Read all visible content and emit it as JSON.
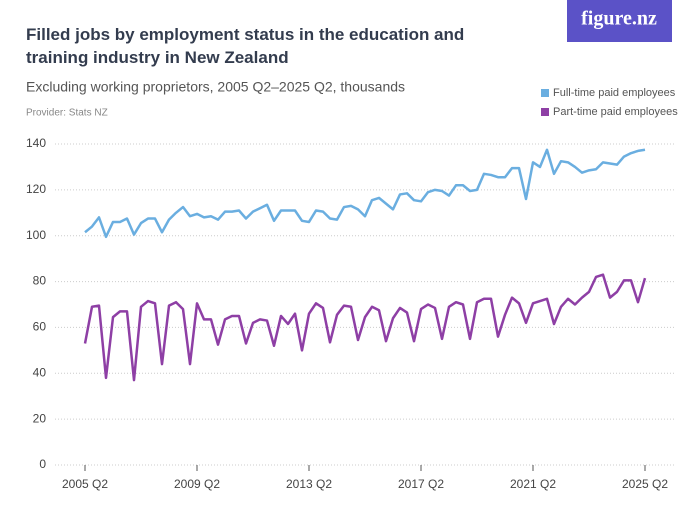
{
  "logo": "figure.nz",
  "chart_data": {
    "type": "line",
    "title": "Filled jobs by employment status in the education and training industry in New Zealand",
    "subtitle": "Excluding working proprietors, 2005 Q2–2025 Q2, thousands",
    "provider": "Provider: Stats NZ",
    "categories": [
      "2005 Q2",
      null,
      null,
      null,
      null,
      null,
      null,
      null,
      null,
      null,
      null,
      null,
      null,
      null,
      null,
      null,
      "2009 Q2",
      null,
      null,
      null,
      null,
      null,
      null,
      null,
      null,
      null,
      null,
      null,
      null,
      null,
      null,
      null,
      "2013 Q2",
      null,
      null,
      null,
      null,
      null,
      null,
      null,
      null,
      null,
      null,
      null,
      null,
      null,
      null,
      null,
      "2017 Q2",
      null,
      null,
      null,
      null,
      null,
      null,
      null,
      null,
      null,
      null,
      null,
      null,
      null,
      null,
      null,
      "2021 Q2",
      null,
      null,
      null,
      null,
      null,
      null,
      null,
      null,
      null,
      null,
      null,
      null,
      null,
      null,
      null,
      "2025 Q2"
    ],
    "series": [
      {
        "name": "Full-time paid employees",
        "color": "#6aaee0",
        "values": [
          101.5,
          104,
          108,
          99.5,
          106,
          106,
          107.5,
          100.5,
          105.5,
          107.5,
          107.5,
          101.5,
          107,
          110,
          112.5,
          108.5,
          109.5,
          108,
          108.5,
          107,
          110.5,
          110.5,
          111,
          107.5,
          110.5,
          112,
          113.5,
          106.5,
          111,
          111,
          111,
          106.5,
          106,
          111,
          110.5,
          107.5,
          107,
          112.5,
          113,
          111.5,
          108.5,
          115.5,
          116.5,
          114,
          111.5,
          118,
          118.5,
          115.5,
          115,
          119,
          120,
          119.5,
          117.5,
          122,
          122,
          119.5,
          120,
          127,
          126.5,
          125.5,
          125.5,
          129.5,
          129.5,
          116,
          132,
          130,
          137.5,
          127,
          132.5,
          132,
          130,
          127.5,
          128.5,
          129,
          132,
          131.5,
          131,
          134.5,
          136,
          137,
          137.5
        ]
      },
      {
        "name": "Part-time paid employees",
        "color": "#8e3fa5",
        "values": [
          53,
          69,
          69.5,
          38,
          64.5,
          67,
          67,
          37,
          69,
          71.5,
          70.5,
          44,
          69.5,
          71,
          68,
          44,
          70.5,
          63.5,
          63.5,
          52.5,
          63.5,
          65,
          65,
          53,
          62,
          63.5,
          63,
          52,
          65,
          61.5,
          66,
          50,
          66,
          70.5,
          68.5,
          53.5,
          65.5,
          69.5,
          69,
          54.5,
          64.5,
          69,
          67.5,
          54,
          64,
          68.5,
          66.5,
          54,
          68,
          70,
          68.5,
          55,
          69,
          71,
          70,
          55,
          71,
          72.5,
          72.5,
          56,
          65.5,
          73,
          70.5,
          62,
          70.5,
          71.5,
          72.5,
          61.5,
          69,
          72.5,
          70,
          73,
          75.5,
          82,
          83,
          73,
          75.5,
          80.5,
          80.5,
          71,
          81.5
        ]
      }
    ],
    "ylim": [
      0,
      140
    ],
    "yticks": [
      0,
      20,
      40,
      60,
      80,
      100,
      120,
      140
    ],
    "grid": true,
    "legend": "top-right"
  }
}
